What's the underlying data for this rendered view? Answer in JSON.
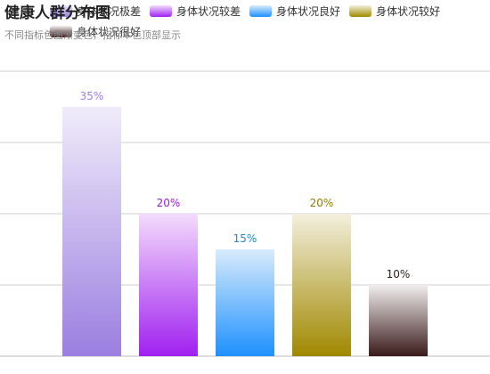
{
  "title": "健康人群分布图",
  "subtitle": "不同指标色图渐变色，指标本色顶部显示",
  "chart_data": {
    "type": "bar",
    "title": "健康人群分布图",
    "subtitle": "不同指标色图渐变色，指标本色顶部显示",
    "categories": [
      "身体状况极差",
      "身体状况较差",
      "身体状况良好",
      "身体状况较好",
      "身体状况很好"
    ],
    "values": [
      35,
      20,
      15,
      20,
      10
    ],
    "data_labels": [
      "35%",
      "20%",
      "15%",
      "20%",
      "10%"
    ],
    "ylim": [
      0,
      40
    ],
    "y_grid_step": 10,
    "grid": true,
    "legend_position": "top",
    "colors": [
      "#9b7ee0",
      "#a020f0",
      "#1e90ff",
      "#a08800",
      "#3a1a1a"
    ],
    "top_colors": [
      "#f0ecfa",
      "#f3dcfc",
      "#d8ecfb",
      "#f3efdd",
      "#f1eeee"
    ],
    "label_colors": [
      "#9b7ee0",
      "#9a1fc9",
      "#2a86c5",
      "#8c7a00",
      "#2a1a1a"
    ]
  }
}
